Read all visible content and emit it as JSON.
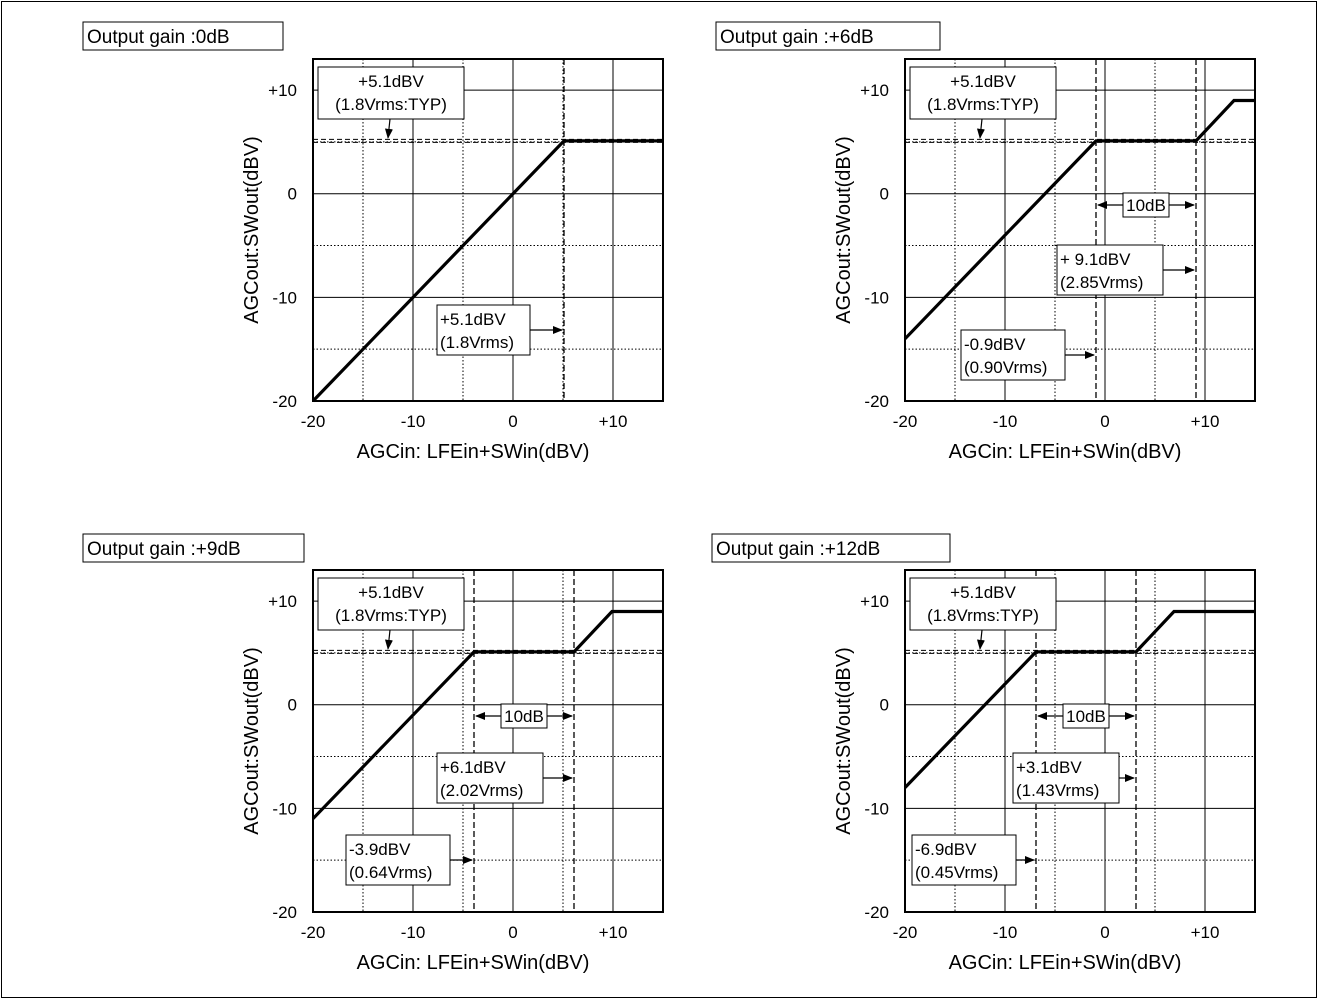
{
  "chart_data": [
    {
      "type": "line",
      "title": "Output gain :0dB",
      "xlabel": "AGCin: LFEin+SWin(dBV)",
      "ylabel": "AGCout:SWout(dBV)",
      "xlim": [
        -20,
        15
      ],
      "ylim": [
        -20,
        13
      ],
      "x_ticks": [
        "-20",
        "-10",
        "0",
        "+10"
      ],
      "y_ticks": [
        "-20",
        "-10",
        "0",
        "+10"
      ],
      "grid": true,
      "series": [
        {
          "x": [
            -20,
            5.1,
            15
          ],
          "y": [
            -20,
            5.1,
            5.1
          ]
        }
      ],
      "ref_line_y": 5.1,
      "ref_label": {
        "line1": "+5.1dBV",
        "line2": "(1.8Vrms:TYP)"
      },
      "markers": [
        {
          "x": 5.1,
          "line1": "+5.1dBV",
          "line2": "(1.8Vrms)"
        }
      ],
      "span_label": ""
    },
    {
      "type": "line",
      "title": "Output gain :+6dB",
      "xlabel": "AGCin: LFEin+SWin(dBV)",
      "ylabel": "AGCout:SWout(dBV)",
      "xlim": [
        -20,
        15
      ],
      "ylim": [
        -20,
        13
      ],
      "x_ticks": [
        "-20",
        "-10",
        "0",
        "+10"
      ],
      "y_ticks": [
        "-20",
        "-10",
        "0",
        "+10"
      ],
      "grid": true,
      "series": [
        {
          "x": [
            -20,
            -0.9,
            9.1,
            12.9,
            15
          ],
          "y": [
            -14,
            5.1,
            5.1,
            9,
            9
          ]
        }
      ],
      "ref_line_y": 5.1,
      "ref_label": {
        "line1": "+5.1dBV",
        "line2": "(1.8Vrms:TYP)"
      },
      "markers": [
        {
          "x": -0.9,
          "line1": "-0.9dBV",
          "line2": "(0.90Vrms)"
        },
        {
          "x": 9.1,
          "line1": "+ 9.1dBV",
          "line2": "(2.85Vrms)"
        }
      ],
      "span_label": "10dB"
    },
    {
      "type": "line",
      "title": "Output gain :+9dB",
      "xlabel": "AGCin: LFEin+SWin(dBV)",
      "ylabel": "AGCout:SWout(dBV)",
      "xlim": [
        -20,
        15
      ],
      "ylim": [
        -20,
        13
      ],
      "x_ticks": [
        "-20",
        "-10",
        "0",
        "+10"
      ],
      "y_ticks": [
        "-20",
        "-10",
        "0",
        "+10"
      ],
      "grid": true,
      "series": [
        {
          "x": [
            -20,
            -3.9,
            6.1,
            9.9,
            15
          ],
          "y": [
            -11,
            5.1,
            5.1,
            9,
            9
          ]
        }
      ],
      "ref_line_y": 5.1,
      "ref_label": {
        "line1": "+5.1dBV",
        "line2": "(1.8Vrms:TYP)"
      },
      "markers": [
        {
          "x": -3.9,
          "line1": "-3.9dBV",
          "line2": "(0.64Vrms)"
        },
        {
          "x": 6.1,
          "line1": "+6.1dBV",
          "line2": "(2.02Vrms)"
        }
      ],
      "span_label": "10dB"
    },
    {
      "type": "line",
      "title": "Output gain :+12dB",
      "xlabel": "AGCin: LFEin+SWin(dBV)",
      "ylabel": "AGCout:SWout(dBV)",
      "xlim": [
        -20,
        15
      ],
      "ylim": [
        -20,
        13
      ],
      "x_ticks": [
        "-20",
        "-10",
        "0",
        "+10"
      ],
      "y_ticks": [
        "-20",
        "-10",
        "0",
        "+10"
      ],
      "grid": true,
      "series": [
        {
          "x": [
            -20,
            -6.9,
            3.1,
            6.9,
            15
          ],
          "y": [
            -8,
            5.1,
            5.1,
            9,
            9
          ]
        }
      ],
      "ref_line_y": 5.1,
      "ref_label": {
        "line1": "+5.1dBV",
        "line2": "(1.8Vrms:TYP)"
      },
      "markers": [
        {
          "x": -6.9,
          "line1": "-6.9dBV",
          "line2": "(0.45Vrms)"
        },
        {
          "x": 3.1,
          "line1": "+3.1dBV",
          "line2": "(1.43Vrms)"
        }
      ],
      "span_label": "10dB"
    }
  ]
}
